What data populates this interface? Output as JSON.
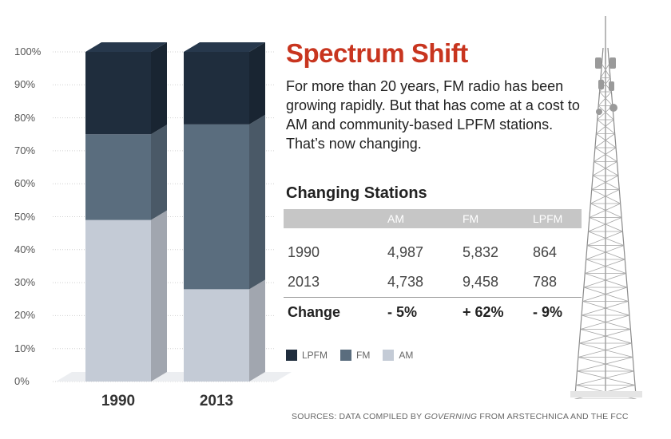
{
  "title": "Spectrum Shift",
  "description": "For more than 20 years, FM radio has been growing rapidly. But that has come at a cost to AM and community-based LPFM stations. That’s now changing.",
  "table": {
    "title": "Changing Stations",
    "headers": [
      "",
      "AM",
      "FM",
      "LPFM"
    ],
    "rows": [
      [
        "1990",
        "4,987",
        "5,832",
        "864"
      ],
      [
        "2013",
        "4,738",
        "9,458",
        "788"
      ]
    ],
    "change": [
      "Change",
      "- 5%",
      "+ 62%",
      "- 9%"
    ]
  },
  "legend": [
    {
      "label": "LPFM",
      "color": "#1f2d3d"
    },
    {
      "label": "FM",
      "color": "#5a6d7e"
    },
    {
      "label": "AM",
      "color": "#c4cbd6"
    }
  ],
  "source": {
    "prefix": "SOURCES: DATA COMPILED BY ",
    "publication": "GOVERNING",
    "suffix": " FROM ARSTECHNICA AND THE FCC"
  },
  "chart_data": {
    "type": "bar",
    "stacked": true,
    "categories": [
      "1990",
      "2013"
    ],
    "series": [
      {
        "name": "AM",
        "values": [
          49,
          28
        ],
        "color": "#c4cbd6"
      },
      {
        "name": "FM",
        "values": [
          26,
          50
        ],
        "color": "#5a6d7e"
      },
      {
        "name": "LPFM",
        "values": [
          25,
          22
        ],
        "color": "#1f2d3d"
      }
    ],
    "ylim": [
      0,
      100
    ],
    "yticks": [
      "0%",
      "10%",
      "20%",
      "30%",
      "40%",
      "50%",
      "60%",
      "70%",
      "80%",
      "90%",
      "100%"
    ],
    "ylabel": "",
    "xlabel": ""
  }
}
